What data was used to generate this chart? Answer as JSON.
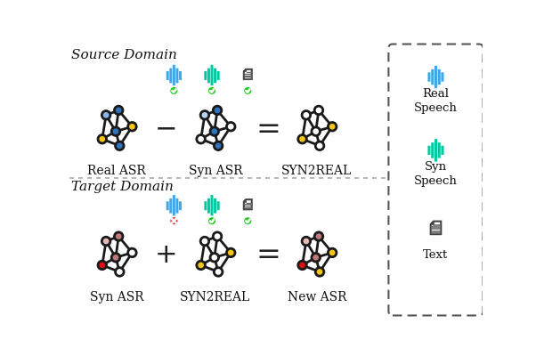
{
  "source_domain_label": "Source Domain",
  "target_domain_label": "Target Domain",
  "real_asr_label": "Real ASR",
  "syn_asr_label": "Syn ASR",
  "syn2real_label": "SYN2REAL",
  "new_asr_label": "New ASR",
  "blue_dark": "#2F74C0",
  "blue_light": "#89B4E8",
  "blue_pale": "#B8D4F0",
  "yellow": "#F5C518",
  "pink_light": "#E8B8BC",
  "pink_mid": "#C07878",
  "red": "#DD1111",
  "white": "#FFFFFF",
  "teal": "#00C8A0",
  "sky_blue": "#40A8E8",
  "green_check": "#22CC22",
  "red_x": "#EE2222",
  "edge_color": "#1a1a1a",
  "bg_color": "#FFFFFF"
}
